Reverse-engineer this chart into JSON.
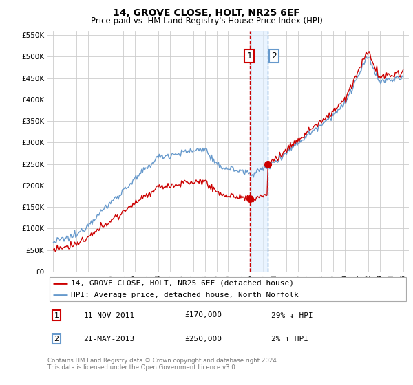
{
  "title": "14, GROVE CLOSE, HOLT, NR25 6EF",
  "subtitle": "Price paid vs. HM Land Registry's House Price Index (HPI)",
  "legend_line1": "14, GROVE CLOSE, HOLT, NR25 6EF (detached house)",
  "legend_line2": "HPI: Average price, detached house, North Norfolk",
  "annotation1_date": "11-NOV-2011",
  "annotation1_price": 170000,
  "annotation1_text": "29% ↓ HPI",
  "annotation2_date": "21-MAY-2013",
  "annotation2_price": 250000,
  "annotation2_text": "2% ↑ HPI",
  "footer": "Contains HM Land Registry data © Crown copyright and database right 2024.\nThis data is licensed under the Open Government Licence v3.0.",
  "hpi_color": "#6699cc",
  "price_color": "#cc0000",
  "annotation_vline1_color": "#cc0000",
  "annotation_vline2_color": "#6699cc",
  "annotation_fill_color": "#ddeeff",
  "sale1_year": 2011.86,
  "sale1_price": 170000,
  "sale2_year": 2013.38,
  "sale2_price": 250000,
  "ylim": [
    0,
    560000
  ],
  "yticks": [
    0,
    50000,
    100000,
    150000,
    200000,
    250000,
    300000,
    350000,
    400000,
    450000,
    500000,
    550000
  ],
  "xlim_start": 1994.5,
  "xlim_end": 2025.5
}
